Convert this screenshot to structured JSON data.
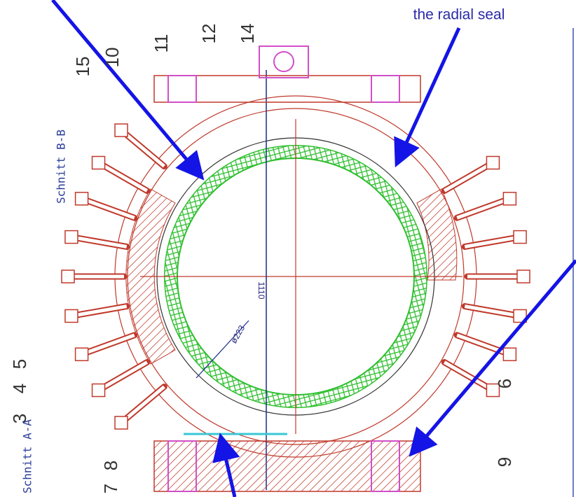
{
  "annotation": "the radial seal",
  "section_labels": [
    "Schnitt B-B",
    "Schnitt A-A"
  ],
  "part_numbers": [
    "15",
    "10",
    "11",
    "12",
    "14",
    "5",
    "4",
    "3",
    "8",
    "7",
    "6",
    "9"
  ],
  "dimensions": [
    "1110",
    "ø223"
  ]
}
